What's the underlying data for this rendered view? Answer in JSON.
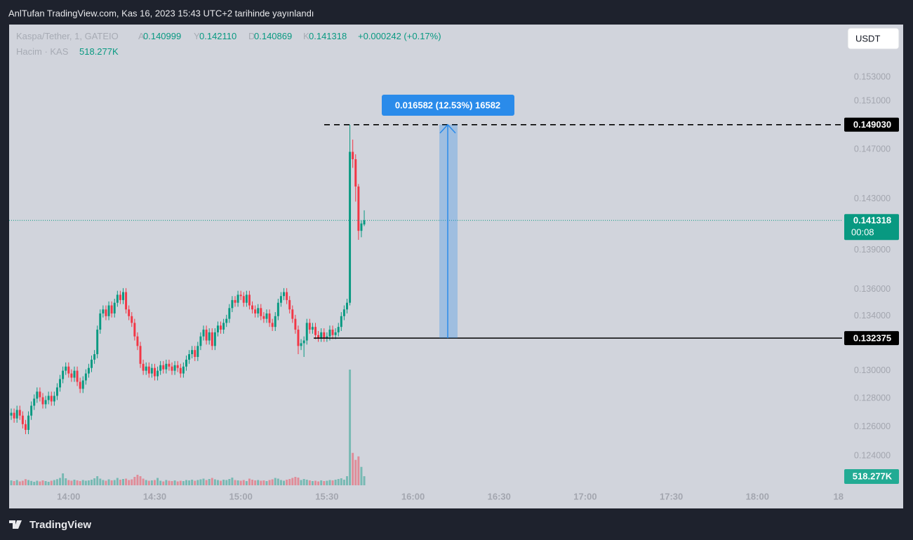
{
  "header": {
    "published": "AnlTufan TradingView.com, Kas 16, 2023 15:43 UTC+2 tarihinde yayınlandı"
  },
  "toolbar": {
    "currency": "USDT"
  },
  "footer": {
    "brand": "TradingView"
  },
  "chart_data": {
    "type": "candlestick",
    "symbol": "Kaspa/Tether, 1, GATEIO",
    "legend": {
      "letters": [
        "A",
        "Y",
        "D",
        "K"
      ],
      "values": [
        "0.140999",
        "0.142110",
        "0.140869",
        "0.141318"
      ],
      "change": "+0.000242 (+0.17%)",
      "volume_title": "Hacim · KAS"
    },
    "x": [
      "13:40",
      "13:41",
      "13:42",
      "13:43",
      "13:44",
      "13:45",
      "13:46",
      "13:47",
      "13:48",
      "13:49",
      "13:50",
      "13:51",
      "13:52",
      "13:53",
      "13:54",
      "13:55",
      "13:56",
      "13:57",
      "13:58",
      "13:59",
      "14:00",
      "14:01",
      "14:02",
      "14:03",
      "14:04",
      "14:05",
      "14:06",
      "14:07",
      "14:08",
      "14:09",
      "14:10",
      "14:11",
      "14:12",
      "14:13",
      "14:14",
      "14:15",
      "14:16",
      "14:17",
      "14:18",
      "14:19",
      "14:20",
      "14:21",
      "14:22",
      "14:23",
      "14:24",
      "14:25",
      "14:26",
      "14:27",
      "14:28",
      "14:29",
      "14:30",
      "14:31",
      "14:32",
      "14:33",
      "14:34",
      "14:35",
      "14:36",
      "14:37",
      "14:38",
      "14:39",
      "14:40",
      "14:41",
      "14:42",
      "14:43",
      "14:44",
      "14:45",
      "14:46",
      "14:47",
      "14:48",
      "14:49",
      "14:50",
      "14:51",
      "14:52",
      "14:53",
      "14:54",
      "14:55",
      "14:56",
      "14:57",
      "14:58",
      "14:59",
      "15:00",
      "15:01",
      "15:02",
      "15:03",
      "15:04",
      "15:05",
      "15:06",
      "15:07",
      "15:08",
      "15:09",
      "15:10",
      "15:11",
      "15:12",
      "15:13",
      "15:14",
      "15:15",
      "15:16",
      "15:17",
      "15:18",
      "15:19",
      "15:20",
      "15:21",
      "15:22",
      "15:23",
      "15:24",
      "15:25",
      "15:26",
      "15:27",
      "15:28",
      "15:29",
      "15:30",
      "15:31",
      "15:32",
      "15:33",
      "15:34",
      "15:35",
      "15:36",
      "15:37",
      "15:38",
      "15:39",
      "15:40",
      "15:41",
      "15:42",
      "15:43"
    ],
    "open": [
      0.1268,
      0.127,
      0.1266,
      0.1272,
      0.1268,
      0.1262,
      0.1258,
      0.1268,
      0.1275,
      0.128,
      0.1285,
      0.1281,
      0.1276,
      0.1279,
      0.1282,
      0.1278,
      0.1282,
      0.1288,
      0.1294,
      0.13,
      0.1303,
      0.1298,
      0.1295,
      0.13,
      0.1292,
      0.1287,
      0.1293,
      0.1298,
      0.1302,
      0.1308,
      0.1312,
      0.133,
      0.1342,
      0.1345,
      0.134,
      0.1348,
      0.1342,
      0.135,
      0.1356,
      0.1352,
      0.1358,
      0.1345,
      0.134,
      0.1335,
      0.1325,
      0.1318,
      0.1305,
      0.13,
      0.1303,
      0.1298,
      0.1302,
      0.1296,
      0.13,
      0.1304,
      0.1301,
      0.1305,
      0.1303,
      0.13,
      0.1304,
      0.1302,
      0.1298,
      0.1303,
      0.1308,
      0.1312,
      0.1315,
      0.131,
      0.1318,
      0.1325,
      0.133,
      0.1322,
      0.1328,
      0.1318,
      0.1328,
      0.1333,
      0.133,
      0.1335,
      0.1338,
      0.1346,
      0.1352,
      0.135,
      0.1356,
      0.1355,
      0.135,
      0.1356,
      0.1348,
      0.1345,
      0.1342,
      0.1346,
      0.134,
      0.1338,
      0.1342,
      0.1335,
      0.1332,
      0.134,
      0.135,
      0.1355,
      0.1358,
      0.1352,
      0.1345,
      0.1338,
      0.133,
      0.1318,
      0.132,
      0.1322,
      0.1335,
      0.133,
      0.1332,
      0.1326,
      0.1324,
      0.1328,
      0.1324,
      0.1325,
      0.133,
      0.1326,
      0.1328,
      0.1332,
      0.134,
      0.1345,
      0.135,
      0.1468,
      0.1462,
      0.144,
      0.1405,
      0.140999
    ],
    "high": [
      0.1273,
      0.1273,
      0.1275,
      0.1275,
      0.1271,
      0.1265,
      0.1271,
      0.1278,
      0.1283,
      0.1288,
      0.1288,
      0.1284,
      0.1282,
      0.1285,
      0.1285,
      0.1285,
      0.1291,
      0.1297,
      0.1303,
      0.1306,
      0.1306,
      0.1301,
      0.1303,
      0.1303,
      0.1295,
      0.1296,
      0.1301,
      0.1305,
      0.1311,
      0.1315,
      0.1333,
      0.1345,
      0.1348,
      0.1348,
      0.1351,
      0.1351,
      0.1353,
      0.1359,
      0.1359,
      0.1361,
      0.1361,
      0.1348,
      0.1343,
      0.1338,
      0.1328,
      0.1321,
      0.1308,
      0.1306,
      0.1306,
      0.1305,
      0.1305,
      0.1303,
      0.1307,
      0.1307,
      0.1308,
      0.1308,
      0.1306,
      0.1307,
      0.1307,
      0.1305,
      0.1306,
      0.1311,
      0.1315,
      0.1318,
      0.1318,
      0.1321,
      0.1328,
      0.1333,
      0.1333,
      0.1331,
      0.1331,
      0.1331,
      0.1336,
      0.1336,
      0.1338,
      0.1341,
      0.1349,
      0.1355,
      0.1355,
      0.1359,
      0.1359,
      0.1358,
      0.1359,
      0.1359,
      0.1351,
      0.1348,
      0.1349,
      0.1349,
      0.1343,
      0.1345,
      0.1345,
      0.1338,
      0.1343,
      0.1353,
      0.1358,
      0.1361,
      0.1361,
      0.1355,
      0.1348,
      0.1341,
      0.1333,
      0.1323,
      0.1325,
      0.1338,
      0.1338,
      0.1335,
      0.1335,
      0.1329,
      0.1331,
      0.1331,
      0.1328,
      0.1333,
      0.1333,
      0.1331,
      0.1335,
      0.1343,
      0.1348,
      0.1353,
      0.14903,
      0.1478,
      0.1466,
      0.1442,
      0.1413,
      0.14211
    ],
    "low": [
      0.1265,
      0.1263,
      0.1263,
      0.1265,
      0.1259,
      0.1255,
      0.1255,
      0.1265,
      0.1272,
      0.1277,
      0.1278,
      0.1273,
      0.1273,
      0.1276,
      0.1275,
      0.1275,
      0.1279,
      0.1285,
      0.1291,
      0.1297,
      0.1295,
      0.1292,
      0.1292,
      0.1289,
      0.1284,
      0.1284,
      0.129,
      0.1295,
      0.1299,
      0.1305,
      0.1309,
      0.1327,
      0.1339,
      0.1337,
      0.1337,
      0.1339,
      0.1339,
      0.1347,
      0.1349,
      0.1349,
      0.1342,
      0.1337,
      0.1332,
      0.1322,
      0.1315,
      0.1302,
      0.1297,
      0.1297,
      0.1295,
      0.1295,
      0.1293,
      0.1293,
      0.1297,
      0.1298,
      0.1298,
      0.13,
      0.1297,
      0.1297,
      0.1299,
      0.1295,
      0.1295,
      0.13,
      0.1305,
      0.1309,
      0.1307,
      0.1307,
      0.1315,
      0.1322,
      0.1319,
      0.1319,
      0.1315,
      0.1315,
      0.1325,
      0.1327,
      0.1327,
      0.1332,
      0.1335,
      0.1343,
      0.1347,
      0.1347,
      0.1352,
      0.1347,
      0.1347,
      0.1345,
      0.1342,
      0.1339,
      0.1339,
      0.1337,
      0.1335,
      0.1335,
      0.1332,
      0.1329,
      0.1329,
      0.1337,
      0.1347,
      0.1352,
      0.1349,
      0.1342,
      0.1335,
      0.1327,
      0.1312,
      0.1315,
      0.131,
      0.1319,
      0.1327,
      0.1327,
      0.1323,
      0.1321,
      0.1321,
      0.1321,
      0.1321,
      0.1322,
      0.1323,
      0.1323,
      0.1325,
      0.1329,
      0.1337,
      0.1342,
      0.1348,
      0.1455,
      0.1428,
      0.1398,
      0.14,
      0.140869
    ],
    "close": [
      0.127,
      0.1266,
      0.1272,
      0.1268,
      0.1262,
      0.1258,
      0.1268,
      0.1275,
      0.128,
      0.1285,
      0.1281,
      0.1276,
      0.1279,
      0.1282,
      0.1278,
      0.1282,
      0.1288,
      0.1294,
      0.13,
      0.1303,
      0.1298,
      0.1295,
      0.13,
      0.1292,
      0.1287,
      0.1293,
      0.1298,
      0.1302,
      0.1308,
      0.1312,
      0.133,
      0.1342,
      0.1345,
      0.134,
      0.1348,
      0.1342,
      0.135,
      0.1356,
      0.1352,
      0.1358,
      0.1345,
      0.134,
      0.1335,
      0.1325,
      0.1318,
      0.1305,
      0.13,
      0.1303,
      0.1298,
      0.1302,
      0.1296,
      0.13,
      0.1304,
      0.1301,
      0.1305,
      0.1303,
      0.13,
      0.1304,
      0.1302,
      0.1298,
      0.1303,
      0.1308,
      0.1312,
      0.1315,
      0.131,
      0.1318,
      0.1325,
      0.133,
      0.1322,
      0.1328,
      0.1318,
      0.1328,
      0.1333,
      0.133,
      0.1335,
      0.1338,
      0.1346,
      0.1352,
      0.135,
      0.1356,
      0.1355,
      0.135,
      0.1356,
      0.1348,
      0.1345,
      0.1342,
      0.1346,
      0.134,
      0.1338,
      0.1342,
      0.1335,
      0.1332,
      0.134,
      0.135,
      0.1355,
      0.1358,
      0.1352,
      0.1345,
      0.1338,
      0.133,
      0.1318,
      0.132,
      0.1322,
      0.1335,
      0.133,
      0.1332,
      0.1326,
      0.1324,
      0.1328,
      0.1324,
      0.1325,
      0.133,
      0.1326,
      0.1328,
      0.1332,
      0.134,
      0.1345,
      0.135,
      0.1468,
      0.1462,
      0.144,
      0.1405,
      0.141076,
      0.141318
    ],
    "volume": [
      280000,
      240000,
      300000,
      220000,
      260000,
      350000,
      300000,
      250000,
      200000,
      260000,
      220000,
      280000,
      240000,
      200000,
      260000,
      300000,
      350000,
      420000,
      680000,
      400000,
      300000,
      260000,
      320000,
      280000,
      240000,
      300000,
      260000,
      280000,
      320000,
      400000,
      520000,
      380000,
      300000,
      260000,
      340000,
      280000,
      300000,
      420000,
      320000,
      360000,
      380000,
      300000,
      340000,
      480000,
      600000,
      520000,
      380000,
      300000,
      260000,
      280000,
      300000,
      420000,
      260000,
      220000,
      300000,
      260000,
      240000,
      280000,
      220000,
      260000,
      240000,
      300000,
      280000,
      320000,
      260000,
      300000,
      340000,
      380000,
      300000,
      360000,
      420000,
      340000,
      300000,
      260000,
      320000,
      300000,
      360000,
      440000,
      300000,
      280000,
      260000,
      300000,
      240000,
      380000,
      320000,
      280000,
      300000,
      260000,
      280000,
      240000,
      300000,
      340000,
      420000,
      380000,
      300000,
      260000,
      320000,
      360000,
      420000,
      480000,
      440000,
      300000,
      360000,
      320000,
      280000,
      240000,
      260000,
      220000,
      280000,
      240000,
      260000,
      300000,
      280000,
      320000,
      360000,
      400000,
      320000,
      520000,
      6600000,
      1850000,
      1450000,
      1650000,
      1050000,
      518277
    ],
    "volume_last_label": "518.277K",
    "up_color": "#089981",
    "down_color": "#f23645",
    "scale": "log",
    "grid": false,
    "ylim": [
      0.12043,
      0.15755
    ],
    "yticks": [
      {
        "value": 0.153,
        "label": "0.153000"
      },
      {
        "value": 0.151,
        "label": "0.151000"
      },
      {
        "value": 0.147,
        "label": "0.147000"
      },
      {
        "value": 0.143,
        "label": "0.143000"
      },
      {
        "value": 0.139,
        "label": "0.139000"
      },
      {
        "value": 0.136,
        "label": "0.136000"
      },
      {
        "value": 0.134,
        "label": "0.134000"
      },
      {
        "value": 0.13,
        "label": "0.130000"
      },
      {
        "value": 0.128,
        "label": "0.128000"
      },
      {
        "value": 0.126,
        "label": "0.126000"
      },
      {
        "value": 0.124,
        "label": "0.124000"
      }
    ],
    "vlim": [
      0,
      8000000
    ],
    "xlim": [
      "13:40",
      "18:30"
    ],
    "xticks": [
      "14:00",
      "14:30",
      "15:00",
      "15:30",
      "16:00",
      "16:30",
      "17:00",
      "17:30",
      "18:00",
      {
        "value": "18:30",
        "label": "18"
      }
    ],
    "countdown": "00:08",
    "price_lines": [
      {
        "value": 0.14903,
        "label": "0.149030",
        "style": "dashed"
      },
      {
        "value": 0.132375,
        "label": "0.132375",
        "style": "solid"
      }
    ],
    "measure": {
      "label": "0.016582 (12.53%) 16582",
      "color": "#2a8bea"
    }
  }
}
